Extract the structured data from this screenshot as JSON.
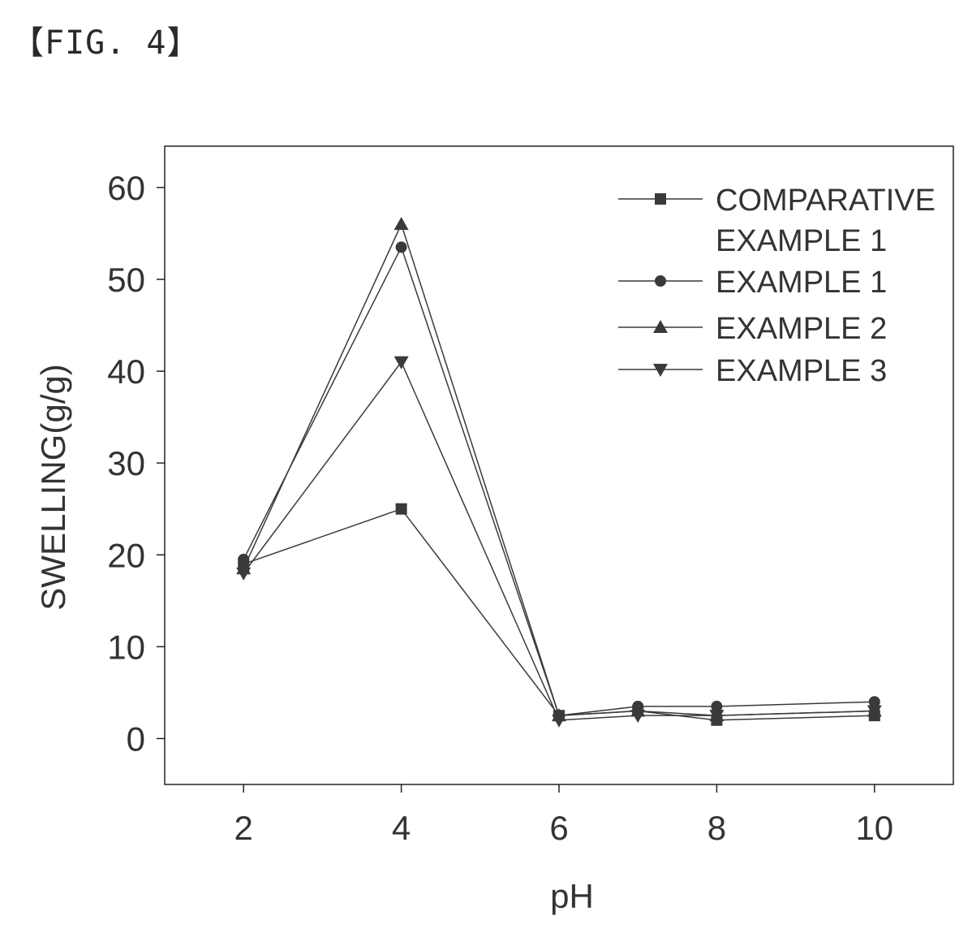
{
  "figure_label": "【FIG. 4】",
  "chart_data": {
    "type": "line",
    "title": "",
    "xlabel": "pH",
    "ylabel": "SWELLING(g/g)",
    "x": [
      2,
      4,
      6,
      7,
      8,
      10
    ],
    "xticks": [
      2,
      4,
      6,
      8,
      10
    ],
    "yticks": [
      0,
      10,
      20,
      30,
      40,
      50,
      60
    ],
    "xlim": [
      1,
      11
    ],
    "ylim": [
      -5,
      64.5
    ],
    "grid": false,
    "legend_position": "top-right",
    "series": [
      {
        "name": "COMPARATIVE EXAMPLE 1",
        "marker": "square",
        "values": [
          19,
          25,
          2.5,
          3,
          2,
          2.5
        ]
      },
      {
        "name": "EXAMPLE 1",
        "marker": "circle",
        "values": [
          19.5,
          53.5,
          2.5,
          3.5,
          3.5,
          4
        ]
      },
      {
        "name": "EXAMPLE 2",
        "marker": "triangle-up",
        "values": [
          18.5,
          56,
          2.5,
          3,
          2.5,
          3
        ]
      },
      {
        "name": "EXAMPLE 3",
        "marker": "triangle-down",
        "values": [
          18,
          41,
          2,
          2.5,
          2.5,
          3
        ]
      }
    ],
    "legend_lines": [
      [
        "COMPARATIVE",
        "EXAMPLE 1"
      ],
      [
        "EXAMPLE 1"
      ],
      [
        "EXAMPLE 2"
      ],
      [
        "EXAMPLE 3"
      ]
    ],
    "colors": {
      "line": "#3a3a3a",
      "marker": "#3a3a3a",
      "frame": "#222222",
      "text": "#333333"
    }
  }
}
